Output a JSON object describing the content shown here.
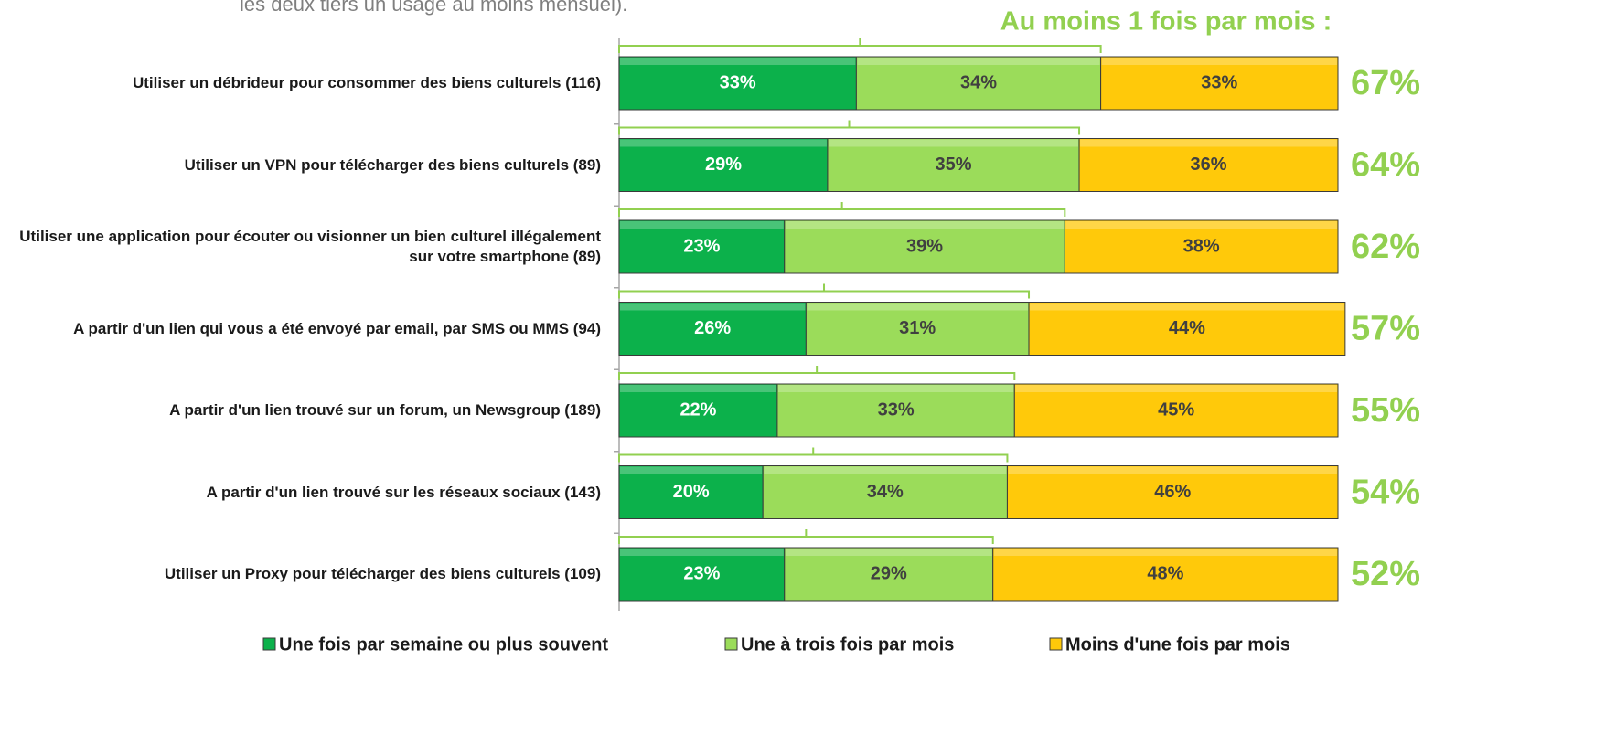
{
  "chart_data": {
    "type": "stacked_bar_horizontal",
    "subtitle": "les deux tiers un usage au moins mensuel).",
    "categories": [
      "Utiliser un débrideur pour consommer des biens culturels (116)",
      "Utiliser un VPN pour télécharger des biens culturels (89)",
      "Utiliser une application pour écouter ou visionner un bien culturel illégalement sur votre smartphone (89)",
      "A partir  d'un lien qui vous a été envoyé par email, par SMS ou MMS (94)",
      "A partir d'un lien trouvé sur un forum, un Newsgroup (189)",
      "A partir  d'un lien trouvé sur les réseaux sociaux (143)",
      "Utiliser un Proxy pour télécharger des biens culturels (109)"
    ],
    "series": [
      {
        "name": "Une fois par semaine ou plus souvent",
        "color": "#0cb14b",
        "label_color": "#ffffff",
        "values": [
          33,
          29,
          23,
          26,
          22,
          20,
          23
        ],
        "value_labels": [
          "33%",
          "29%",
          "23%",
          "26%",
          "22%",
          "20%",
          "23%"
        ]
      },
      {
        "name": "Une à trois fois par mois",
        "color": "#9bdc5a",
        "label_color": "#404040",
        "values": [
          34,
          35,
          39,
          31,
          33,
          34,
          29
        ],
        "value_labels": [
          "34%",
          "35%",
          "39%",
          "31%",
          "33%",
          "34%",
          "29%"
        ]
      },
      {
        "name": "Moins d'une fois par mois",
        "color": "#ffc90a",
        "label_color": "#404040",
        "values": [
          33,
          36,
          38,
          44,
          45,
          46,
          48
        ],
        "value_labels": [
          "33%",
          "36%",
          "38%",
          "44%",
          "45%",
          "46%",
          "48%"
        ]
      }
    ],
    "totals": {
      "title": "Au moins 1 fois par mois :",
      "color": "#92d050",
      "values": [
        67,
        64,
        62,
        57,
        55,
        54,
        52
      ],
      "value_labels": [
        "67%",
        "64%",
        "62%",
        "57%",
        "55%",
        "54%",
        "52%"
      ]
    },
    "xlim": [
      0,
      100
    ]
  }
}
